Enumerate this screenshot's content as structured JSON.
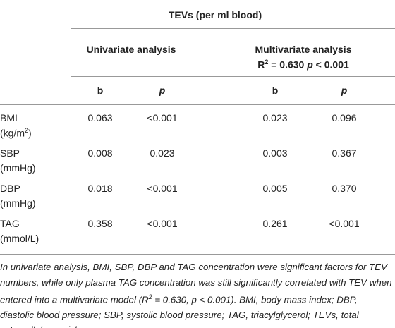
{
  "header": {
    "title": "TEVs (per ml blood)",
    "groups": [
      {
        "title": "Univariate analysis"
      },
      {
        "title": "Multivariate analysis",
        "stat": {
          "r_symbol": "R",
          "r_sup": "2",
          "r_value": " = 0.630 ",
          "p_symbol": "p",
          "p_value": " < 0.001"
        }
      }
    ],
    "columns": [
      "b",
      "p",
      "b",
      "p"
    ]
  },
  "table": {
    "rows": [
      {
        "label": "BMI",
        "unit": [
          "(kg/m",
          "2",
          ")"
        ],
        "cells": [
          "0.063",
          "<0.001",
          "0.023",
          "0.096"
        ]
      },
      {
        "label": "SBP",
        "unit": [
          "(mmHg)"
        ],
        "cells": [
          "0.008",
          "0.023",
          "0.003",
          "0.367"
        ]
      },
      {
        "label": "DBP",
        "unit": [
          "(mmHg)"
        ],
        "cells": [
          "0.018",
          "<0.001",
          "0.005",
          "0.370"
        ]
      },
      {
        "label": "TAG",
        "unit": [
          "(mmol/L)"
        ],
        "cells": [
          "0.358",
          "<0.001",
          "0.261",
          "<0.001"
        ]
      }
    ]
  },
  "footnote": [
    "In univariate analysis, BMI, SBP, DBP and TAG concentration were significant factors for TEV numbers, while only plasma TAG concentration was still significantly correlated with TEV when entered into a multivariate model (R",
    "2",
    " = 0.630, p < 0.001). BMI, body mass index; DBP, diastolic blood pressure; SBP, systolic blood pressure; TAG, triacylglycerol; TEVs, total extracellular vesicles."
  ]
}
